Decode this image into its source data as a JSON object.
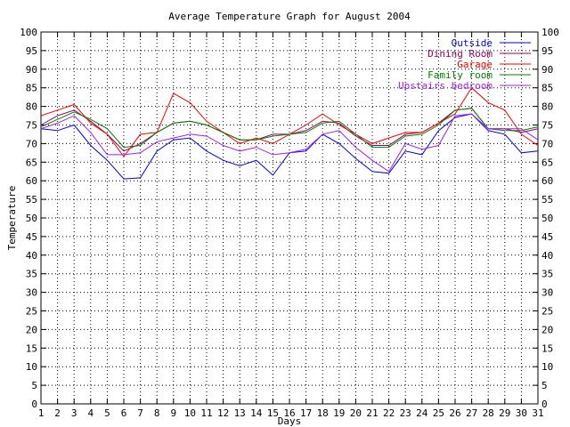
{
  "chart_data": {
    "type": "line",
    "title": "Average Temperature Graph for August 2004",
    "xlabel": "Days",
    "ylabel": "Temperature",
    "xlim": [
      1,
      31
    ],
    "ylim": [
      0,
      100
    ],
    "xticks": [
      1,
      2,
      3,
      4,
      5,
      6,
      7,
      8,
      9,
      10,
      11,
      12,
      13,
      14,
      15,
      16,
      17,
      18,
      19,
      20,
      21,
      22,
      23,
      24,
      25,
      26,
      27,
      28,
      29,
      30,
      31
    ],
    "yticks": [
      0,
      5,
      10,
      15,
      20,
      25,
      30,
      35,
      40,
      45,
      50,
      55,
      60,
      65,
      70,
      75,
      80,
      85,
      90,
      95,
      100
    ],
    "grid": true,
    "legend_position": "top-right",
    "x": [
      1,
      2,
      3,
      4,
      5,
      6,
      7,
      8,
      9,
      10,
      11,
      12,
      13,
      14,
      15,
      16,
      17,
      18,
      19,
      20,
      21,
      22,
      23,
      24,
      25,
      26,
      27,
      28,
      29,
      30,
      31
    ],
    "series": [
      {
        "name": "Outside",
        "color": "#0000ff",
        "values": [
          74,
          73.5,
          75,
          69.5,
          65.5,
          60.5,
          60.8,
          68,
          71,
          71.5,
          68,
          65.5,
          64,
          65.5,
          61.5,
          67.5,
          68,
          72.5,
          70,
          66,
          62.5,
          62,
          68,
          67,
          73.5,
          77,
          78,
          73.5,
          72.5,
          67.5,
          68
        ]
      },
      {
        "name": "Dining Room",
        "color": "#990066",
        "values": [
          75,
          77.5,
          79,
          76,
          72.5,
          68,
          70,
          73,
          75.5,
          76,
          75,
          73,
          71,
          71,
          72.5,
          72.5,
          73.5,
          76,
          75.5,
          72,
          69.5,
          69.5,
          72.5,
          73,
          75.5,
          79,
          79.5,
          74,
          74,
          73,
          74
        ]
      },
      {
        "name": "Garage",
        "color": "#ff0000",
        "values": [
          77.5,
          79,
          80.5,
          75.5,
          72.5,
          66.5,
          72.5,
          73,
          83.5,
          81,
          76,
          73,
          70,
          71.5,
          70,
          72.5,
          75,
          78,
          75,
          72.5,
          70,
          71.5,
          73,
          73,
          75.5,
          78,
          85,
          81,
          79,
          72.5,
          69.5
        ]
      },
      {
        "name": "Family room",
        "color": "#008000",
        "values": [
          74.5,
          76.5,
          78.5,
          76.5,
          74,
          69,
          69.5,
          73,
          75.5,
          76,
          75,
          73,
          71,
          71,
          72,
          72.5,
          73,
          75.5,
          76,
          72.5,
          69,
          69,
          72,
          72.5,
          75,
          79,
          79.5,
          74,
          73.5,
          73.5,
          74.5
        ]
      },
      {
        "name": "Upstairs bedroom",
        "color": "#a020f0",
        "values": [
          74,
          75.5,
          77.5,
          73,
          67,
          67,
          67.5,
          70.5,
          71.5,
          72.5,
          72,
          69.5,
          68,
          69,
          67,
          67.5,
          68.5,
          72.5,
          73.5,
          69,
          65.5,
          62.5,
          70,
          68.5,
          69.5,
          77.5,
          78,
          74,
          74,
          74,
          71
        ]
      }
    ]
  }
}
